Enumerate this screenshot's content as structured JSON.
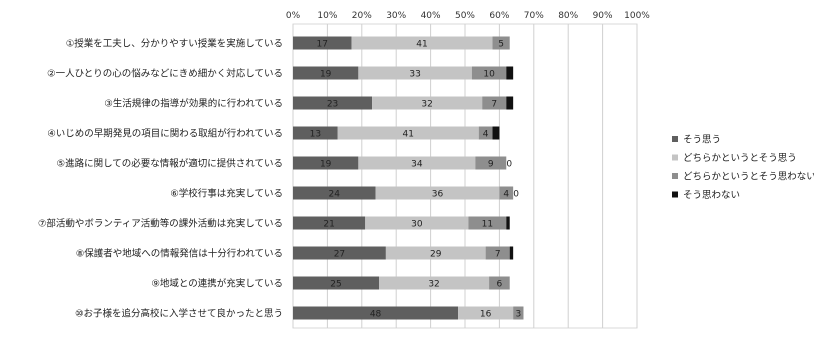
{
  "chart_data": {
    "type": "bar",
    "orientation": "horizontal",
    "stacked": "percent",
    "categories": [
      "①授業を工夫し、分かりやすい授業を実施している",
      "②一人ひとりの心の悩みなどにきめ細かく対応している",
      "③生活規律の指導が効果的に行われている",
      "④いじめの早期発見の項目に関わる取組が行われている",
      "⑤進路に関しての必要な情報が適切に提供されている",
      "⑥学校行事は充実している",
      "⑦部活動やボランティア活動等の課外活動は充実している",
      "⑧保護者や地域への情報発信は十分行われている",
      "⑨地域との連携が充実している",
      "⑩お子様を追分高校に入学させて良かったと思う"
    ],
    "series": [
      {
        "name": "そう思う",
        "color": "#5f5f5f",
        "values": [
          17,
          19,
          23,
          13,
          19,
          24,
          21,
          27,
          25,
          48
        ],
        "labels": [
          "17",
          "19",
          "23",
          "13",
          "19",
          "24",
          "21",
          "27",
          "25",
          "48"
        ]
      },
      {
        "name": "どちらかというとそう思う",
        "color": "#c4c4c4",
        "values": [
          41,
          33,
          32,
          41,
          34,
          36,
          30,
          29,
          32,
          16
        ],
        "labels": [
          "41",
          "33",
          "32",
          "41",
          "34",
          "36",
          "30",
          "29",
          "32",
          "16"
        ]
      },
      {
        "name": "どちらかというとそう思わない",
        "color": "#8e8e8e",
        "values": [
          5,
          10,
          7,
          4,
          9,
          4,
          11,
          7,
          6,
          3
        ],
        "labels": [
          "5",
          "10",
          "7",
          "4",
          "9",
          "4",
          "11",
          "7",
          "6",
          "3"
        ]
      },
      {
        "name": "そう思わない",
        "color": "#111111",
        "values": [
          0,
          2,
          2,
          2,
          0,
          0,
          1,
          1,
          0,
          0
        ],
        "labels": [
          "",
          "",
          "",
          "",
          "0",
          "0",
          "",
          "",
          "",
          ""
        ]
      }
    ],
    "x_ticks": [
      "0%",
      "10%",
      "20%",
      "30%",
      "40%",
      "50%",
      "60%",
      "70%",
      "80%",
      "90%",
      "100%"
    ],
    "xlim": [
      0,
      100
    ],
    "grid": true,
    "legend_position": "right"
  }
}
